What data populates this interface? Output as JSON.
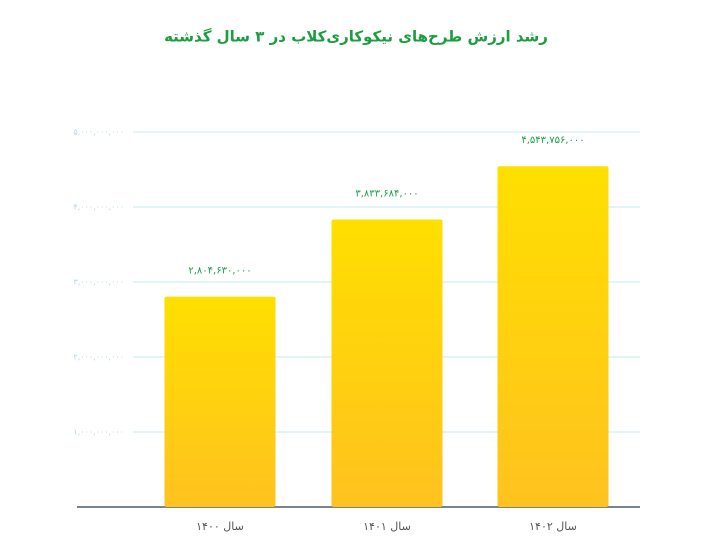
{
  "chart_data": {
    "type": "bar",
    "title": "رشد ارزش طرح‌های نیکوکاری‌کلاب در ۳ سال گذشته",
    "categories": [
      "سال ۱۴۰۰",
      "سال ۱۴۰۱",
      "سال ۱۴۰۲"
    ],
    "values": [
      2804630000,
      3833684000,
      4543756000
    ],
    "value_labels": [
      "۲,۸۰۴,۶۳۰,۰۰۰",
      "۳,۸۳۳,۶۸۴,۰۰۰",
      "۴,۵۴۳,۷۵۶,۰۰۰"
    ],
    "color": "#ffdf00",
    "ylim": [
      0,
      5000000000
    ],
    "yticks": [
      {
        "value": 1000000000,
        "label": "۱,۰۰۰,۰۰۰,۰۰۰"
      },
      {
        "value": 2000000000,
        "label": "۲,۰۰۰,۰۰۰,۰۰۰"
      },
      {
        "value": 3000000000,
        "label": "۳,۰۰۰,۰۰۰,۰۰۰"
      },
      {
        "value": 4000000000,
        "label": "۴,۰۰۰,۰۰۰,۰۰۰"
      },
      {
        "value": 5000000000,
        "label": "۵,۰۰۰,۰۰۰,۰۰۰"
      }
    ],
    "grid": true
  }
}
